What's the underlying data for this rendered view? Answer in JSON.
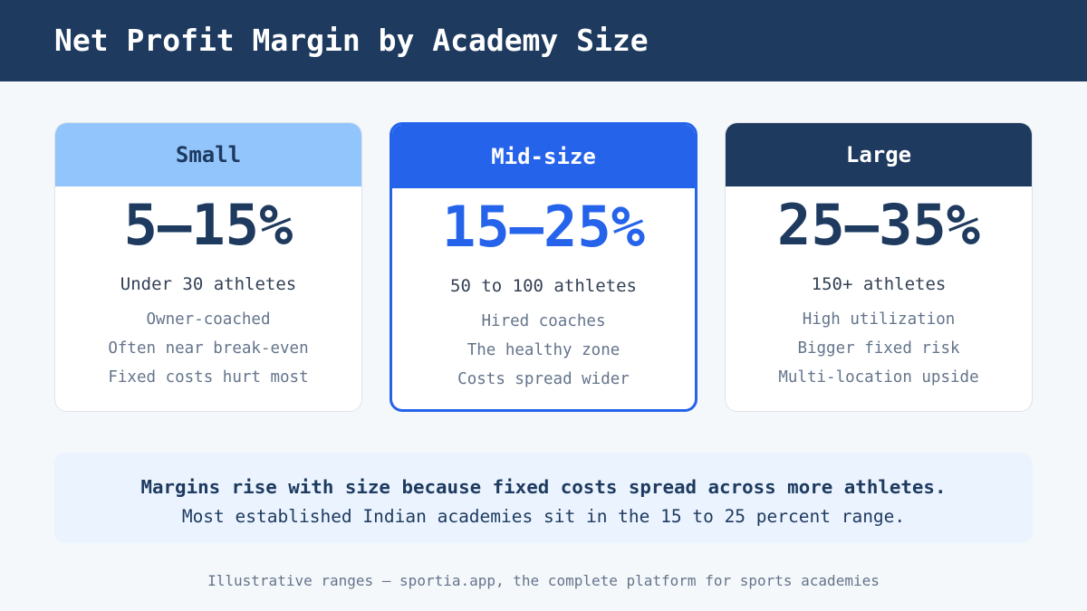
{
  "header": {
    "title": "Net Profit Margin by Academy Size"
  },
  "cards": [
    {
      "label": "Small",
      "range": "5–15%",
      "size": "Under 30 athletes",
      "points": [
        "Owner-coached",
        "Often near break-even",
        "Fixed costs hurt most"
      ]
    },
    {
      "label": "Mid-size",
      "range": "15–25%",
      "size": "50 to 100 athletes",
      "points": [
        "Hired coaches",
        "The healthy zone",
        "Costs spread wider"
      ]
    },
    {
      "label": "Large",
      "range": "25–35%",
      "size": "150+ athletes",
      "points": [
        "High utilization",
        "Bigger fixed risk",
        "Multi-location upside"
      ]
    }
  ],
  "callout": {
    "headline": "Margins rise with size because fixed costs spread across more athletes.",
    "detail": "Most established Indian academies sit in the 15 to 25 percent range."
  },
  "footer": {
    "note": "Illustrative ranges – sportia.app, the complete platform for sports academies"
  }
}
